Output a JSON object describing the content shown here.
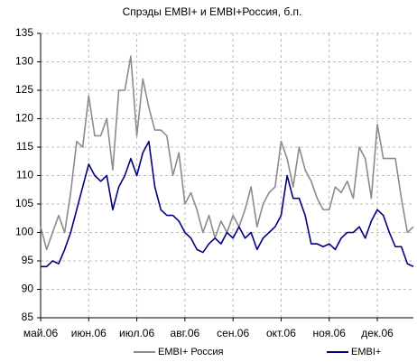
{
  "chart_data": {
    "type": "line",
    "title": "Спрэды EMBI+ и EMBI+Россия, б.п.",
    "categories": [
      "май.06",
      null,
      null,
      null,
      null,
      null,
      null,
      null,
      "июн.06",
      null,
      null,
      null,
      null,
      null,
      null,
      null,
      "июл.06",
      null,
      null,
      null,
      null,
      null,
      null,
      null,
      "авг.06",
      null,
      null,
      null,
      null,
      null,
      null,
      null,
      "сен.06",
      null,
      null,
      null,
      null,
      null,
      null,
      null,
      "окт.06",
      null,
      null,
      null,
      null,
      null,
      null,
      null,
      "ноя.06",
      null,
      null,
      null,
      null,
      null,
      null,
      null,
      "дек.06",
      null,
      null,
      null,
      null,
      null,
      null
    ],
    "series": [
      {
        "name": "EMBI+ Россия",
        "color": "#8c8c8c",
        "values": [
          101,
          97,
          100,
          103,
          100,
          107,
          116,
          115,
          124,
          117,
          117,
          120,
          111,
          125,
          125,
          131,
          117,
          127,
          122,
          118,
          118,
          117,
          110,
          114,
          105,
          107,
          104,
          100,
          103,
          99,
          102,
          100,
          103,
          101,
          104,
          108,
          101,
          105,
          107,
          108,
          116,
          113,
          108,
          115,
          111,
          109,
          106,
          104,
          104,
          108,
          107,
          109,
          106,
          115,
          113,
          106,
          119,
          113,
          113,
          113,
          106,
          100,
          101
        ]
      },
      {
        "name": "EMBI+",
        "color": "#000080",
        "values": [
          94,
          94,
          95,
          94.5,
          97,
          100,
          104,
          108,
          112,
          110,
          109,
          110,
          104,
          108,
          110,
          113,
          110,
          114,
          116,
          108,
          104,
          103,
          103,
          102,
          100,
          99,
          97,
          96.5,
          98,
          99,
          98,
          100,
          99,
          101,
          99,
          100,
          97,
          99,
          100,
          101,
          103,
          110,
          106,
          106,
          103,
          98,
          98,
          97.5,
          98,
          97,
          99,
          100,
          100,
          101,
          99,
          102,
          104,
          103,
          100,
          97.5,
          97.5,
          94.5,
          94
        ]
      }
    ],
    "ylim": [
      85,
      135
    ],
    "yticks": [
      85,
      90,
      95,
      100,
      105,
      110,
      115,
      120,
      125,
      130,
      135
    ],
    "grid": true
  }
}
